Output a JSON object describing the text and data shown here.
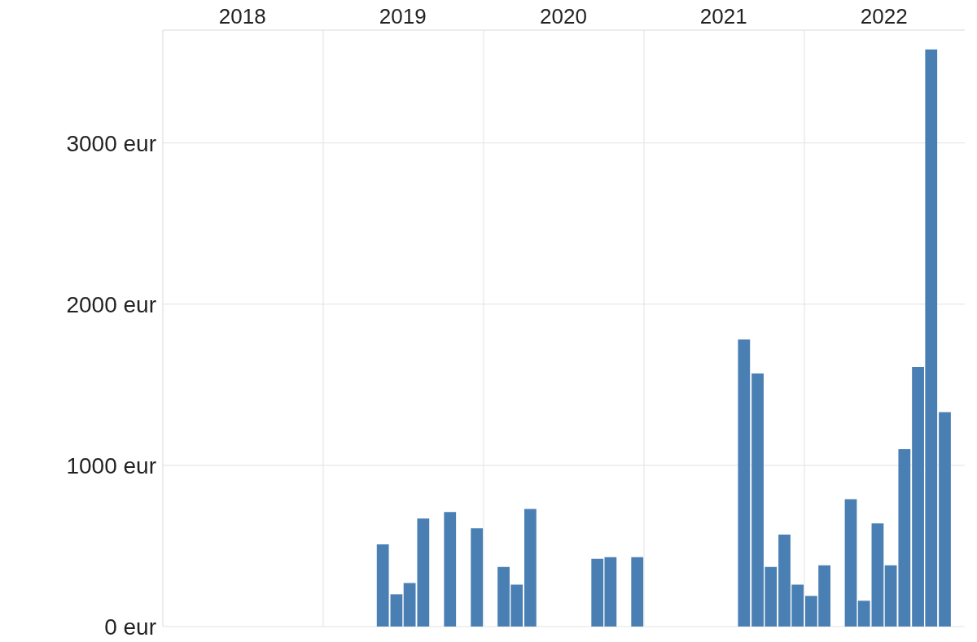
{
  "chart_data": {
    "type": "bar",
    "color": "#4a7fb4",
    "x": [
      "2019-05-16",
      "2019-06-16",
      "2019-07-16",
      "2019-08-16",
      "2019-10-16",
      "2019-12-16",
      "2020-02-15",
      "2020-03-16",
      "2020-04-16",
      "2020-09-16",
      "2020-10-16",
      "2020-12-16",
      "2021-08-16",
      "2021-09-16",
      "2021-10-16",
      "2021-11-16",
      "2021-12-16",
      "2022-01-16",
      "2022-02-15",
      "2022-04-16",
      "2022-05-16",
      "2022-06-16",
      "2022-07-16",
      "2022-08-16",
      "2022-09-16",
      "2022-10-16",
      "2022-11-16"
    ],
    "values": [
      510,
      200,
      270,
      670,
      710,
      610,
      370,
      260,
      730,
      420,
      430,
      430,
      1780,
      1570,
      370,
      570,
      260,
      190,
      380,
      790,
      160,
      640,
      380,
      1100,
      1610,
      3580,
      1330
    ],
    "xlim": [
      "2018-01",
      "2023-01"
    ],
    "xticks": [
      {
        "value": "2018-07",
        "label": "2018"
      },
      {
        "value": "2019",
        "label": null
      },
      {
        "value": "2019-07",
        "label": "2019"
      },
      {
        "value": "2020",
        "label": null
      },
      {
        "value": "2020-07",
        "label": "2020"
      },
      {
        "value": "2021",
        "label": null
      },
      {
        "value": "2021-07",
        "label": "2021"
      },
      {
        "value": "2022",
        "label": null
      },
      {
        "value": "2022-07",
        "label": "2022"
      }
    ],
    "ylim": [
      0,
      3700
    ],
    "yticks": [
      {
        "value": 0,
        "label": "0 eur"
      },
      {
        "value": 1000,
        "label": "1000 eur"
      },
      {
        "value": 2000,
        "label": "2000 eur"
      },
      {
        "value": 3000,
        "label": "3000 eur"
      }
    ],
    "grid": true
  }
}
